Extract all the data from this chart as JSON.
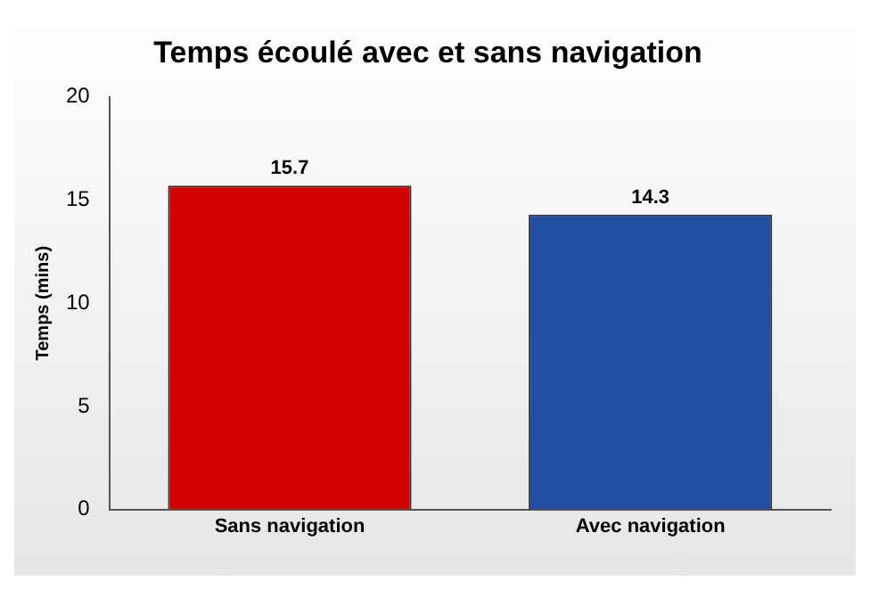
{
  "chart_data": {
    "type": "bar",
    "title": "Temps écoulé avec et sans navigation",
    "ylabel": "Temps (mins)",
    "categories": [
      "Sans navigation",
      "Avec navigation"
    ],
    "values": [
      15.7,
      14.3
    ],
    "colors": [
      "#d40000",
      "#1f4ea3"
    ],
    "ylim": [
      0,
      20
    ],
    "yticks": [
      0,
      5,
      10,
      15,
      20
    ],
    "grid": false,
    "legend": false,
    "data_labels": true
  }
}
